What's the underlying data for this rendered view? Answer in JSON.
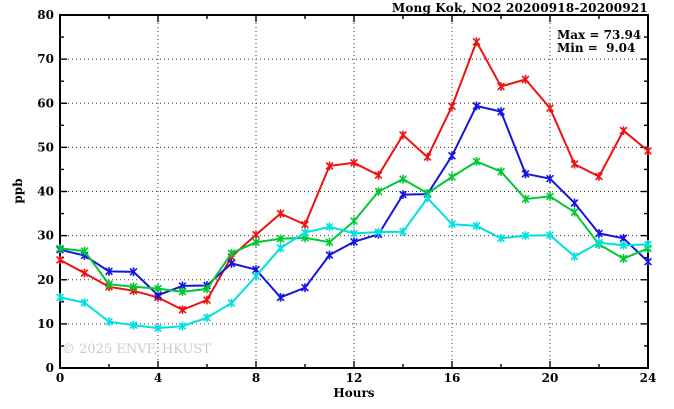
{
  "header": {
    "title": "Mong Kok, NO2 20200918-20200921"
  },
  "stats_box": {
    "max": "Max = 73.94",
    "min": "Min =  9.04"
  },
  "watermark": {
    "text": "© 2025 ENVF, HKUST"
  },
  "axes": {
    "y_label": "ppb",
    "x_label": "Hours"
  },
  "chart_data": {
    "type": "line",
    "title": "Mong Kok, NO2 20200918-20200921",
    "xlabel": "Hours",
    "ylabel": "ppb",
    "xlim": [
      0,
      24
    ],
    "ylim": [
      0,
      80
    ],
    "grid": "dotted",
    "legend_position": "none",
    "x_ticks_major": [
      0,
      4,
      8,
      12,
      16,
      20,
      24
    ],
    "x_ticks_minor": [
      2,
      6,
      10,
      14,
      18,
      22
    ],
    "y_ticks_major": [
      0,
      10,
      20,
      30,
      40,
      50,
      60,
      70,
      80
    ],
    "y_ticks_minor": [
      5,
      15,
      25,
      35,
      45,
      55,
      65,
      75
    ],
    "grid_x": [
      4,
      8,
      12,
      16,
      20
    ],
    "grid_y": [
      10,
      20,
      30,
      40,
      50,
      60,
      70
    ],
    "annotations": {
      "max": 73.94,
      "min": 9.04
    },
    "x": [
      0,
      1,
      2,
      3,
      4,
      5,
      6,
      7,
      8,
      9,
      10,
      11,
      12,
      13,
      14,
      15,
      16,
      17,
      18,
      19,
      20,
      21,
      22,
      23,
      24
    ],
    "series": [
      {
        "name": "red-series",
        "color": "#ee1111",
        "values": [
          24.5,
          21.5,
          18.4,
          17.5,
          16.0,
          13.2,
          15.4,
          25.2,
          30.2,
          35.0,
          32.5,
          45.8,
          46.5,
          43.7,
          52.8,
          47.8,
          59.3,
          73.94,
          63.8,
          65.4,
          58.9,
          46.2,
          43.4,
          53.8,
          49.2
        ]
      },
      {
        "name": "blue-series",
        "color": "#1414e0",
        "values": [
          26.8,
          25.5,
          21.9,
          21.8,
          16.5,
          18.6,
          18.7,
          23.7,
          22.3,
          16.0,
          18.2,
          25.6,
          28.6,
          30.3,
          39.3,
          39.4,
          48.1,
          59.4,
          58.1,
          44.0,
          42.9,
          37.4,
          30.5,
          29.4,
          24.1
        ]
      },
      {
        "name": "green-series",
        "color": "#00c832",
        "values": [
          27.1,
          26.5,
          19.0,
          18.4,
          18.0,
          17.3,
          17.9,
          26.0,
          28.5,
          29.3,
          29.5,
          28.5,
          33.3,
          40.0,
          42.8,
          39.6,
          43.3,
          46.8,
          44.5,
          38.3,
          38.9,
          35.3,
          28.0,
          24.8,
          27.1
        ]
      },
      {
        "name": "cyan-series",
        "color": "#00e0e0",
        "values": [
          16.0,
          14.8,
          10.5,
          9.7,
          9.04,
          9.5,
          11.4,
          14.7,
          20.8,
          27.2,
          30.7,
          32.0,
          30.5,
          30.8,
          30.9,
          38.5,
          32.6,
          32.2,
          29.4,
          30.0,
          30.1,
          25.3,
          28.4,
          27.8,
          28.0
        ]
      }
    ]
  }
}
